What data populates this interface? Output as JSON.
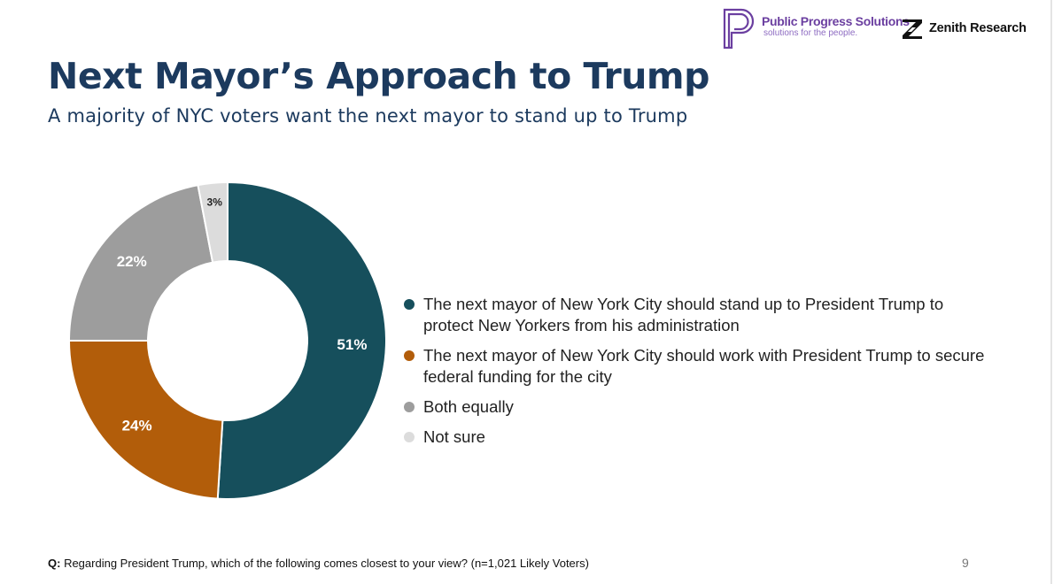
{
  "header": {
    "partner_logo": {
      "name": "Public Progress Solutions",
      "tagline": "solutions for the people.",
      "icon": "pps-logo-icon",
      "color": "#6b3fa0"
    },
    "research_logo": {
      "name": "Zenith Research",
      "icon": "zenith-logo-icon",
      "color": "#111111"
    }
  },
  "title": "Next Mayor’s Approach to Trump",
  "subtitle": "A majority of NYC voters want the next mayor to stand up to Trump",
  "chart_data": {
    "type": "pie",
    "donut": true,
    "title": "Next Mayor’s Approach to Trump",
    "categories": [
      "The next mayor of New York City should stand up to President Trump to protect New Yorkers from his administration",
      "The next mayor of New York City should work with President Trump to secure federal funding for the city",
      "Both equally",
      "Not sure"
    ],
    "values": [
      51,
      24,
      22,
      3
    ],
    "labels": [
      "51%",
      "24%",
      "22%",
      "3%"
    ],
    "colors": [
      "#164f5c",
      "#b25d0a",
      "#9d9d9d",
      "#dcdcdc"
    ],
    "label_colors": [
      "#ffffff",
      "#ffffff",
      "#ffffff",
      "#222222"
    ],
    "start_angle": "top",
    "direction": "clockwise",
    "legend_position": "right"
  },
  "footnote": {
    "label": "Q:",
    "text": " Regarding President Trump, which of the following comes closest to your view? (n=1,021 Likely Voters)"
  },
  "page_number": "9"
}
